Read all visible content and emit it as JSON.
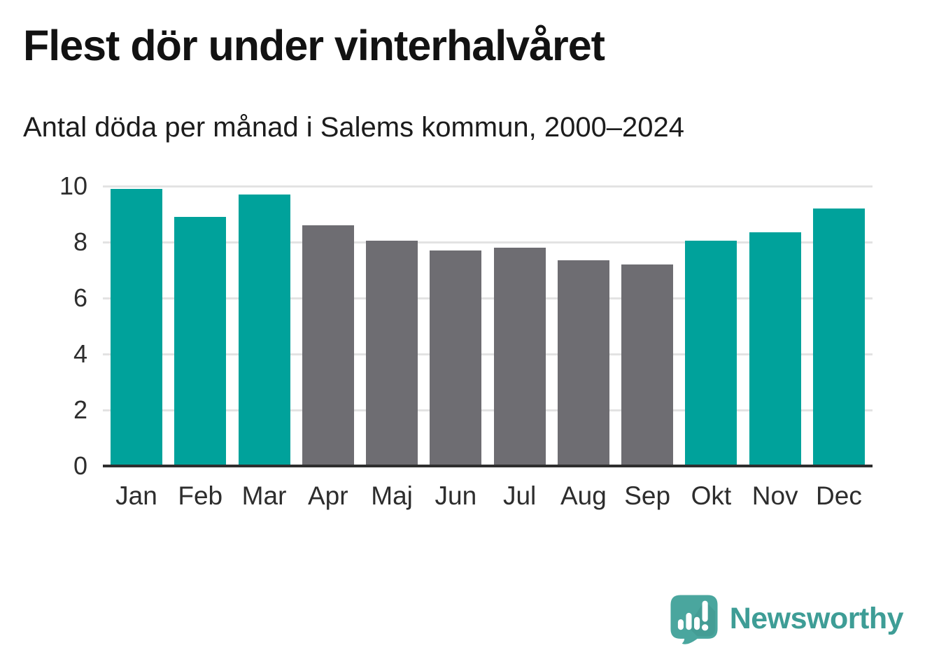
{
  "header": {
    "title": "Flest dör under vinterhalvåret",
    "subtitle": "Antal döda per månad i Salems kommun, 2000–2024"
  },
  "chart_data": {
    "type": "bar",
    "title": "Flest dör under vinterhalvåret",
    "subtitle": "Antal döda per månad i Salems kommun, 2000–2024",
    "categories": [
      "Jan",
      "Feb",
      "Mar",
      "Apr",
      "Maj",
      "Jun",
      "Jul",
      "Aug",
      "Sep",
      "Okt",
      "Nov",
      "Dec"
    ],
    "values": [
      9.9,
      8.9,
      9.7,
      8.6,
      8.05,
      7.7,
      7.8,
      7.35,
      7.2,
      8.05,
      8.35,
      9.2
    ],
    "bar_colors": [
      "winter",
      "winter",
      "winter",
      "summer",
      "summer",
      "summer",
      "summer",
      "summer",
      "summer",
      "winter",
      "winter",
      "winter"
    ],
    "xlabel": "",
    "ylabel": "",
    "ylim": [
      0,
      10
    ],
    "yticks": [
      0,
      2,
      4,
      6,
      8,
      10
    ],
    "grid": "horizontal gridlines at ticks, dark baseline at 0",
    "legend_position": "none"
  },
  "colors": {
    "winter": "#00a29b",
    "summer": "#6e6d72",
    "gridline": "#e3e3e3",
    "baseline": "#2e2e2e",
    "title": "#121212",
    "brand": "#3e9d96",
    "logo_bubble": "#4aa69e"
  },
  "footer": {
    "brand": "Newsworthy",
    "logo_icon": "newsworthy-speech-bubble-chart-icon"
  }
}
